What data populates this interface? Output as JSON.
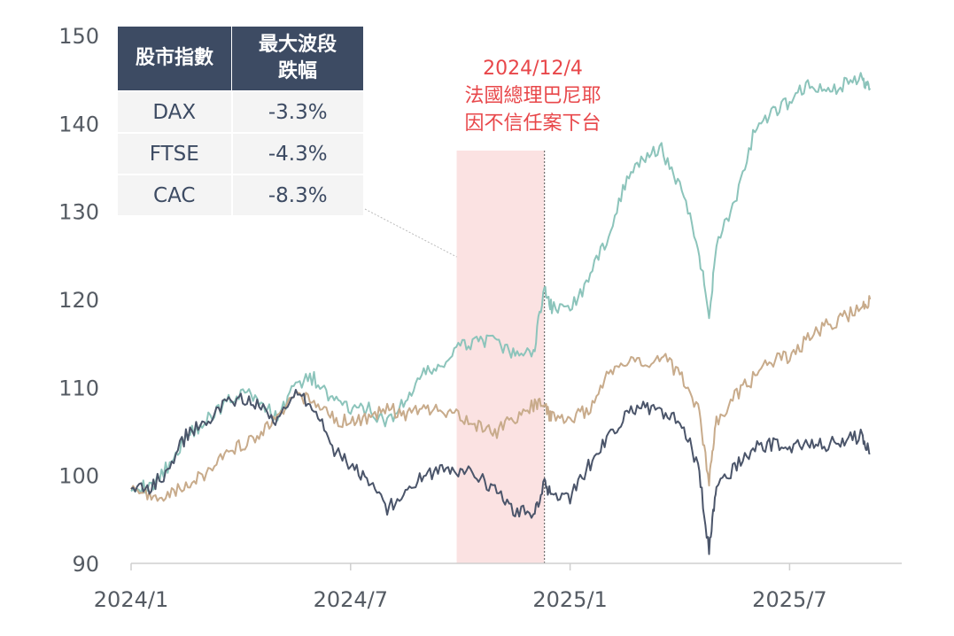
{
  "colors": {
    "DAX": "#8cc4bb",
    "FTSE": "#c8ab8b",
    "CAC": "#4b556a",
    "highlight": "#fbe2e2",
    "annotation": "#e8474a",
    "table_header": "#3d4b63"
  },
  "table": {
    "header_col1": "股市指數",
    "header_col2_line1": "最大波段",
    "header_col2_line2": "跌幅",
    "rows": [
      {
        "index": "DAX",
        "drawdown": "-3.3%"
      },
      {
        "index": "FTSE",
        "drawdown": "-4.3%"
      },
      {
        "index": "CAC",
        "drawdown": "-8.3%"
      }
    ]
  },
  "annotation": {
    "date": "2024/12/4",
    "line1": "法國總理巴尼耶",
    "line2": "因不信任案下台"
  },
  "chart_data": {
    "type": "line",
    "title": "",
    "xlabel": "",
    "ylabel": "",
    "ylim": [
      90,
      150
    ],
    "yticks": [
      90,
      100,
      110,
      120,
      130,
      140,
      150
    ],
    "xticks": [
      {
        "label": "2024/1",
        "t": 0
      },
      {
        "label": "2024/7",
        "t": 6
      },
      {
        "label": "2025/1",
        "t": 12
      },
      {
        "label": "2025/7",
        "t": 18
      }
    ],
    "highlight_range": [
      8.9,
      11.3
    ],
    "event_t": 11.3,
    "series": [
      {
        "name": "DAX",
        "x": [
          0,
          0.5,
          1,
          1.5,
          2,
          2.5,
          3,
          3.5,
          4,
          4.5,
          5,
          5.5,
          6,
          6.5,
          7,
          7.5,
          8,
          8.5,
          9,
          9.5,
          10,
          10.5,
          11,
          11.3,
          11.5,
          12,
          12.5,
          13,
          13.5,
          14,
          14.5,
          15,
          15.5,
          15.8,
          16,
          16.5,
          17,
          17.5,
          18,
          18.5,
          19,
          19.5,
          20,
          20.2
        ],
        "values": [
          99,
          98.5,
          101,
          104.5,
          106,
          108,
          109.5,
          108.5,
          106.5,
          110.5,
          111,
          108.5,
          107.5,
          107.5,
          106,
          108.5,
          111.5,
          112.5,
          114.5,
          115.5,
          115,
          113.5,
          114,
          121.5,
          119,
          119,
          122,
          127,
          133,
          136,
          137,
          133,
          126,
          118,
          126.5,
          131,
          138.5,
          141,
          142.5,
          144.5,
          143.5,
          144.5,
          145,
          144
        ]
      },
      {
        "name": "FTSE",
        "x": [
          0,
          0.5,
          1,
          1.5,
          2,
          2.5,
          3,
          3.5,
          4,
          4.5,
          5,
          5.5,
          6,
          6.5,
          7,
          7.5,
          8,
          8.5,
          9,
          9.5,
          10,
          10.5,
          11,
          11.3,
          11.5,
          12,
          12.5,
          13,
          13.5,
          14,
          14.5,
          15,
          15.5,
          15.8,
          16,
          16.5,
          17,
          17.5,
          18,
          18.5,
          19,
          19.5,
          20,
          20.2
        ],
        "values": [
          99,
          97.5,
          98,
          99,
          100,
          102.5,
          103.5,
          104.5,
          106.5,
          109,
          108.5,
          106.5,
          106,
          106.5,
          107.5,
          107,
          107.5,
          107.5,
          106.5,
          105.5,
          105,
          106.5,
          108,
          108,
          106.5,
          106.5,
          107.5,
          111,
          113,
          112.5,
          113.5,
          111.5,
          107.5,
          99.5,
          106,
          109,
          111,
          113,
          113.5,
          115.5,
          117,
          118,
          119,
          120
        ]
      },
      {
        "name": "CAC",
        "x": [
          0,
          0.5,
          1,
          1.5,
          2,
          2.5,
          3,
          3.5,
          4,
          4.5,
          5,
          5.5,
          6,
          6.5,
          7,
          7.5,
          8,
          8.5,
          9,
          9.5,
          10,
          10.5,
          11,
          11.3,
          11.5,
          12,
          12.5,
          13,
          13.5,
          14,
          14.5,
          15,
          15.5,
          15.8,
          16,
          16.5,
          17,
          17.5,
          18,
          18.5,
          19,
          19.5,
          20,
          20.2
        ],
        "values": [
          99,
          98.5,
          100.5,
          104.5,
          106,
          108,
          108.5,
          108,
          106,
          109.5,
          108,
          103,
          101,
          99.5,
          96,
          98.5,
          100,
          100.5,
          100.5,
          100,
          98,
          96,
          95.5,
          99,
          97.5,
          97.5,
          101,
          104,
          107,
          108,
          107,
          106.5,
          101,
          91.5,
          98.5,
          101,
          103,
          103.5,
          103,
          103.5,
          103.5,
          104,
          104.5,
          102.5
        ]
      }
    ]
  }
}
